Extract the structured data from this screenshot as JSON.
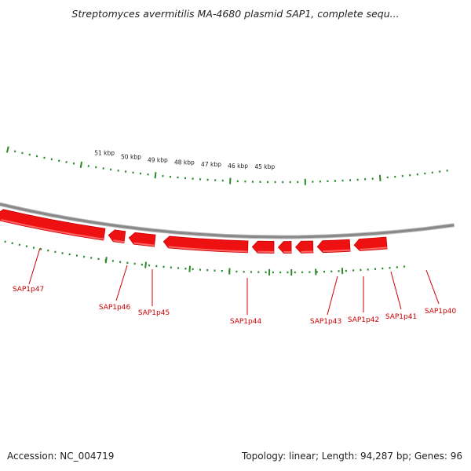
{
  "title": "Streptomyces avermitilis MA-4680 plasmid SAP1, complete sequ...",
  "footer": {
    "accession": "Accession: NC_004719",
    "summary": "Topology: linear; Length: 94,287 bp; Genes: 96"
  },
  "colors": {
    "gene_fill": "#ee1111",
    "gene_highlight": "#ff6666",
    "tick": "#2a8a2a",
    "backbone": "#888888",
    "label": "#cc0000"
  },
  "scale": {
    "unit": "kbp",
    "labels": [
      "51 kbp",
      "50 kbp",
      "49 kbp",
      "48 kbp",
      "47 kbp",
      "46 kbp",
      "45 kbp"
    ]
  },
  "genes": [
    {
      "name": "SAP1p47",
      "strand": "-"
    },
    {
      "name": "SAP1p46",
      "strand": "-"
    },
    {
      "name": "SAP1p45",
      "strand": "-"
    },
    {
      "name": "SAP1p44",
      "strand": "-"
    },
    {
      "name": "SAP1p43",
      "strand": "-"
    },
    {
      "name": "SAP1p42",
      "strand": "-"
    },
    {
      "name": "SAP1p41",
      "strand": "-"
    },
    {
      "name": "SAP1p40",
      "strand": "-"
    }
  ]
}
